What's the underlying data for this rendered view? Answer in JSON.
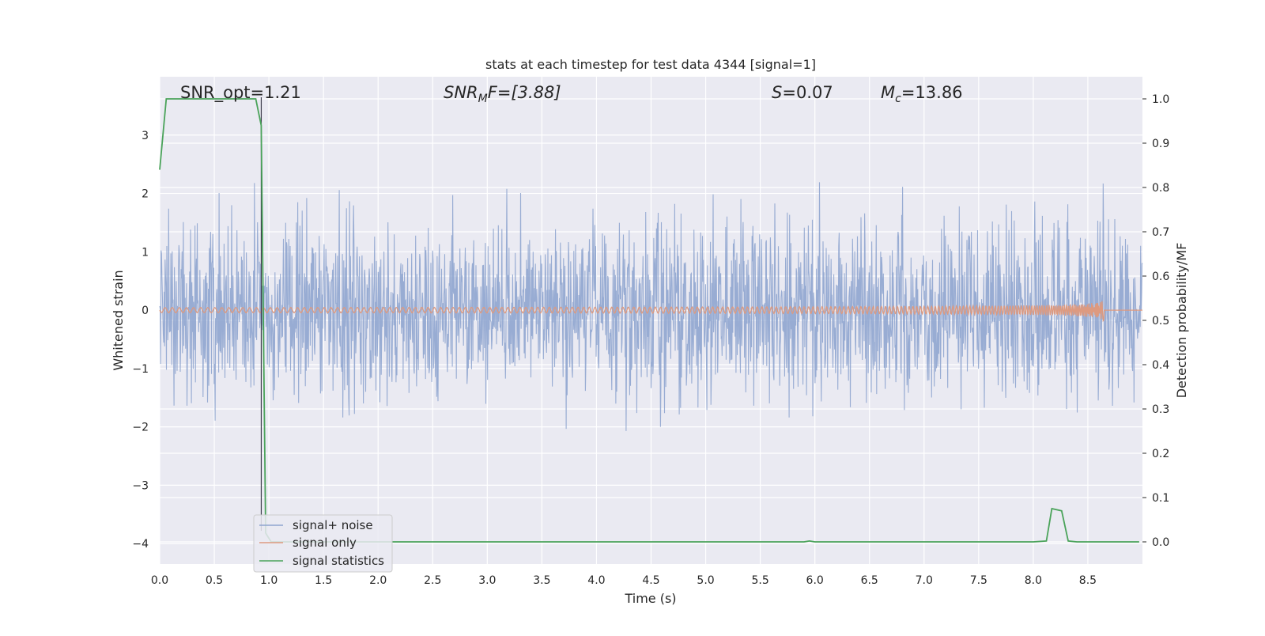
{
  "chart_data": {
    "type": "line",
    "title": "stats at each timestep for test data 4344 [signal=1]",
    "xlabel": "Time (s)",
    "ylabel": "Whitened strain",
    "y2label": "Detection probability/MF",
    "xlim": [
      0.0,
      9.0
    ],
    "ylim": [
      -4.35,
      4.0
    ],
    "y2lim": [
      -0.05,
      1.05
    ],
    "xticks": [
      "0.0",
      "0.5",
      "1.0",
      "1.5",
      "2.0",
      "2.5",
      "3.0",
      "3.5",
      "4.0",
      "4.5",
      "5.0",
      "5.5",
      "6.0",
      "6.5",
      "7.0",
      "7.5",
      "8.0",
      "8.5"
    ],
    "yticks": [
      "3",
      "2",
      "1",
      "0",
      "−1",
      "−2",
      "−3",
      "−4"
    ],
    "y2ticks": [
      "1.0",
      "0.9",
      "0.8",
      "0.7",
      "0.6",
      "0.5",
      "0.4",
      "0.3",
      "0.2",
      "0.1",
      "0.0"
    ],
    "grid": true,
    "legend_position": "lower-left",
    "annotations": {
      "snr_opt": "SNR_opt=1.21",
      "snr_mf_main": "SNR",
      "snr_mf_sub": "M",
      "snr_mf_tail": "F=[3.88]",
      "s_main": "S",
      "s_tail": "=0.07",
      "mc_main": "M",
      "mc_sub": "c",
      "mc_tail": "=13.86"
    },
    "vertical_marker_x": 0.93,
    "series": [
      {
        "name": "signal+ noise",
        "color": "#8fa5cf",
        "axis": "left",
        "description_values": "whitened noise, approx. |y| <= 1.6 typical, peaks to ~3.5 and -3.6"
      },
      {
        "name": "signal only",
        "color": "#dd9a80",
        "axis": "left",
        "chirp_end_x": 8.65,
        "chirp_peak_amplitude": 0.2
      },
      {
        "name": "signal statistics",
        "color": "#4aa35a",
        "axis": "right",
        "x": [
          0.0,
          0.06,
          0.12,
          0.2,
          0.5,
          0.8,
          0.88,
          0.93,
          0.97,
          1.02,
          2.0,
          3.0,
          4.0,
          5.0,
          5.9,
          5.95,
          6.0,
          7.0,
          8.0,
          8.12,
          8.17,
          8.26,
          8.32,
          8.4,
          8.9,
          8.97
        ],
        "y": [
          0.84,
          1.0,
          1.0,
          1.0,
          1.0,
          1.0,
          1.0,
          0.94,
          0.02,
          0.0,
          0.0,
          0.0,
          0.0,
          0.0,
          0.0,
          0.002,
          0.0,
          0.0,
          0.0,
          0.002,
          0.075,
          0.07,
          0.002,
          0.0,
          0.0,
          0.0
        ]
      }
    ]
  }
}
